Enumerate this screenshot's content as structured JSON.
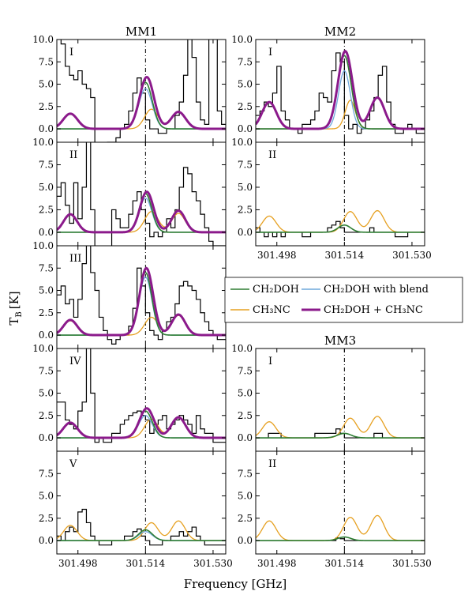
{
  "figure": {
    "xlabel": "Frequency [GHz]",
    "ylabel": "T",
    "ylabel_sub": "B",
    "ylabel_unit": "[K]"
  },
  "legend": {
    "entries": [
      {
        "label": "CH₂DOH",
        "color": "#2e7d32"
      },
      {
        "label": "CH₂DOH with blend",
        "color": "#6fa8dc"
      },
      {
        "label": "CH₃NC",
        "color": "#e6a020"
      },
      {
        "label": "CH₂DOH + CH₃NC",
        "color": "#8b1a8b"
      }
    ]
  },
  "colors": {
    "observed": "#000000",
    "ch2doh": "#2e7d32",
    "blend": "#6fa8dc",
    "ch3nc": "#e6a020",
    "sum": "#8b1a8b"
  },
  "chart_data": [
    {
      "type": "line",
      "group": "MM1",
      "title": "MM1",
      "panel": "I",
      "xlim": [
        301.493,
        301.533
      ],
      "ylim": [
        -1.5,
        10.0
      ],
      "xticks": [
        301.498,
        301.514,
        301.53
      ],
      "yticks": [
        "0.0",
        "2.5",
        "5.0",
        "7.5",
        "10.0"
      ],
      "observed": {
        "x0": 301.493,
        "step": 0.001,
        "y": [
          10.5,
          9.5,
          7.0,
          6.0,
          5.5,
          6.5,
          5.0,
          4.5,
          3.5,
          -2.0,
          -2.0,
          -2.0,
          -1.5,
          -1.5,
          -1.0,
          0.0,
          0.5,
          2.0,
          4.0,
          5.7,
          4.0,
          1.0,
          0.0,
          0.0,
          -0.5,
          -0.5,
          0.0,
          0.0,
          1.5,
          3.0,
          6.0,
          11.0,
          8.0,
          3.0,
          1.0,
          0.5,
          10.5,
          10.5,
          2.0,
          0.5
        ]
      },
      "ch2doh": {
        "amp": 5.2,
        "center": 301.514,
        "width": 0.0016
      },
      "blend": {
        "amp": 4.5,
        "center": 301.514,
        "width": 0.0016
      },
      "ch3nc": {
        "peaks": [
          {
            "amp": 1.7,
            "center": 301.4962
          },
          {
            "amp": 2.2,
            "center": 301.5154
          },
          {
            "amp": 1.9,
            "center": 301.5218
          }
        ],
        "width": 0.0016
      },
      "sum": {
        "peaks": [
          {
            "amp": 1.7,
            "center": 301.4962
          },
          {
            "amp": 5.8,
            "center": 301.5143
          },
          {
            "amp": 1.9,
            "center": 301.5218
          }
        ],
        "width": 0.0017
      },
      "vline": 301.514
    },
    {
      "type": "line",
      "group": "MM1",
      "title": "",
      "panel": "II",
      "xlim": [
        301.493,
        301.533
      ],
      "ylim": [
        -1.5,
        10.0
      ],
      "xticks": [
        301.498,
        301.514,
        301.53
      ],
      "yticks": [
        "0.0",
        "2.5",
        "5.0",
        "7.5",
        "10.0"
      ],
      "observed": {
        "x0": 301.493,
        "step": 0.001,
        "y": [
          4.0,
          5.5,
          3.0,
          1.0,
          5.5,
          1.5,
          5.0,
          11.0,
          2.5,
          -2.0,
          -2.0,
          -2.0,
          -2.0,
          2.5,
          1.5,
          0.5,
          0.5,
          2.0,
          3.5,
          4.5,
          2.5,
          1.0,
          -0.5,
          0.0,
          -0.5,
          0.0,
          1.5,
          0.5,
          2.5,
          5.0,
          7.2,
          6.5,
          4.5,
          3.5,
          2.0,
          0.5,
          -1.0,
          -1.5,
          -1.5,
          -1.5
        ]
      },
      "ch2doh": {
        "amp": 4.3,
        "center": 301.514,
        "width": 0.0015
      },
      "blend": {
        "amp": 3.8,
        "center": 301.514,
        "width": 0.0015
      },
      "ch3nc": {
        "peaks": [
          {
            "amp": 2.0,
            "center": 301.4962
          },
          {
            "amp": 2.3,
            "center": 301.5154
          },
          {
            "amp": 2.1,
            "center": 301.5218
          }
        ],
        "width": 0.0016
      },
      "sum": {
        "peaks": [
          {
            "amp": 2.0,
            "center": 301.4962
          },
          {
            "amp": 4.5,
            "center": 301.5143
          },
          {
            "amp": 2.4,
            "center": 301.5218
          }
        ],
        "width": 0.0016
      },
      "vline": 301.514
    },
    {
      "type": "line",
      "group": "MM1",
      "title": "",
      "panel": "III",
      "xlim": [
        301.493,
        301.533
      ],
      "ylim": [
        -1.5,
        10.0
      ],
      "xticks": [
        301.498,
        301.514,
        301.53
      ],
      "yticks": [
        "0.0",
        "2.5",
        "5.0",
        "7.5",
        "10.0"
      ],
      "observed": {
        "x0": 301.493,
        "step": 0.001,
        "y": [
          4.5,
          5.5,
          3.5,
          4.0,
          2.0,
          4.0,
          8.0,
          11.0,
          7.0,
          5.0,
          2.0,
          0.5,
          -0.5,
          -1.0,
          -0.5,
          0.0,
          0.0,
          1.0,
          3.0,
          7.5,
          5.5,
          2.5,
          0.5,
          0.0,
          -0.5,
          0.5,
          1.5,
          2.0,
          3.5,
          5.5,
          6.0,
          5.5,
          5.0,
          4.0,
          2.5,
          1.5,
          0.5,
          0.0,
          -0.5,
          -0.5
        ]
      },
      "ch2doh": {
        "amp": 7.0,
        "center": 301.514,
        "width": 0.0015
      },
      "blend": {
        "amp": 6.5,
        "center": 301.514,
        "width": 0.0015
      },
      "ch3nc": {
        "peaks": [
          {
            "amp": 1.6,
            "center": 301.4962
          },
          {
            "amp": 2.0,
            "center": 301.5154
          },
          {
            "amp": 2.2,
            "center": 301.5218
          }
        ],
        "width": 0.0016
      },
      "sum": {
        "peaks": [
          {
            "amp": 1.7,
            "center": 301.4962
          },
          {
            "amp": 7.5,
            "center": 301.5142
          },
          {
            "amp": 2.3,
            "center": 301.5218
          }
        ],
        "width": 0.0016
      },
      "vline": 301.514
    },
    {
      "type": "line",
      "group": "MM1",
      "title": "",
      "panel": "IV",
      "xlim": [
        301.493,
        301.533
      ],
      "ylim": [
        -1.5,
        10.0
      ],
      "xticks": [
        301.498,
        301.514,
        301.53
      ],
      "yticks": [
        "0.0",
        "2.5",
        "5.0",
        "7.5",
        "10.0"
      ],
      "observed": {
        "x0": 301.493,
        "step": 0.001,
        "y": [
          4.0,
          4.0,
          2.0,
          1.5,
          1.0,
          3.0,
          4.0,
          10.5,
          5.0,
          -0.5,
          0.0,
          -0.5,
          -0.5,
          0.5,
          0.5,
          1.5,
          2.0,
          2.5,
          2.8,
          3.0,
          2.5,
          2.0,
          0.5,
          1.5,
          2.0,
          2.5,
          1.0,
          1.5,
          2.0,
          2.5,
          2.0,
          1.5,
          0.5,
          2.5,
          1.0,
          0.5,
          0.5,
          -0.5,
          -0.5,
          -0.5
        ]
      },
      "ch2doh": {
        "amp": 3.0,
        "center": 301.514,
        "width": 0.0016
      },
      "blend": {
        "amp": 2.5,
        "center": 301.514,
        "width": 0.0016
      },
      "ch3nc": {
        "peaks": [
          {
            "amp": 1.7,
            "center": 301.4962
          },
          {
            "amp": 2.1,
            "center": 301.5154
          },
          {
            "amp": 2.3,
            "center": 301.5218
          }
        ],
        "width": 0.0016
      },
      "sum": {
        "peaks": [
          {
            "amp": 1.7,
            "center": 301.4962
          },
          {
            "amp": 3.3,
            "center": 301.5143
          },
          {
            "amp": 2.3,
            "center": 301.5218
          }
        ],
        "width": 0.0017
      },
      "vline": 301.514
    },
    {
      "type": "line",
      "group": "MM1",
      "title": "",
      "panel": "V",
      "xlim": [
        301.493,
        301.533
      ],
      "ylim": [
        -1.5,
        10.0
      ],
      "xticks": [
        301.498,
        301.514,
        301.53
      ],
      "xticklabels": [
        "301.498",
        "301.514",
        "301.530"
      ],
      "yticks": [
        "0.0",
        "2.5",
        "5.0",
        "7.5"
      ],
      "observed": {
        "x0": 301.493,
        "step": 0.001,
        "y": [
          0.5,
          0.0,
          1.0,
          1.5,
          1.0,
          3.2,
          3.5,
          2.0,
          0.5,
          0.0,
          -0.5,
          -0.5,
          -0.5,
          0.0,
          0.0,
          0.0,
          0.5,
          0.5,
          1.0,
          1.3,
          0.5,
          0.0,
          -0.5,
          -0.5,
          -0.5,
          0.0,
          0.0,
          0.5,
          0.5,
          1.0,
          0.5,
          1.0,
          1.5,
          0.5,
          0.0,
          -0.5,
          -0.5,
          -0.5,
          -0.5,
          -0.5
        ]
      },
      "ch2doh": {
        "amp": 1.2,
        "center": 301.514,
        "width": 0.0016
      },
      "blend": {
        "amp": 1.0,
        "center": 301.514,
        "width": 0.0016
      },
      "ch3nc": {
        "peaks": [
          {
            "amp": 1.7,
            "center": 301.4962
          },
          {
            "amp": 2.0,
            "center": 301.5154
          },
          {
            "amp": 2.2,
            "center": 301.5218
          }
        ],
        "width": 0.0016
      },
      "vline": 301.514
    },
    {
      "type": "line",
      "group": "MM2",
      "title": "MM2",
      "panel": "I",
      "xlim": [
        301.493,
        301.533
      ],
      "ylim": [
        -1.5,
        10.0
      ],
      "xticks": [
        301.498,
        301.514,
        301.53
      ],
      "yticks": [
        "0.0",
        "2.5",
        "5.0",
        "7.5",
        "10.0"
      ],
      "observed": {
        "x0": 301.493,
        "step": 0.001,
        "y": [
          1.5,
          2.0,
          3.0,
          2.5,
          4.0,
          7.0,
          2.0,
          1.0,
          0.0,
          0.0,
          -0.5,
          0.5,
          0.5,
          1.0,
          2.0,
          4.0,
          3.5,
          3.0,
          6.5,
          8.5,
          7.5,
          1.5,
          0.0,
          0.5,
          -0.5,
          0.0,
          1.0,
          2.0,
          3.5,
          6.0,
          7.0,
          3.0,
          0.5,
          -0.5,
          -0.5,
          0.0,
          0.5,
          0.0,
          -0.5,
          -0.5
        ]
      },
      "ch2doh": {
        "amp": 8.2,
        "center": 301.514,
        "width": 0.0016
      },
      "blend": {
        "amp": 6.5,
        "center": 301.514,
        "width": 0.0014
      },
      "ch3nc": {
        "peaks": [
          {
            "amp": 3.2,
            "center": 301.5154
          }
        ],
        "width": 0.0012
      },
      "sum": {
        "peaks": [
          {
            "amp": 3.0,
            "center": 301.4962
          },
          {
            "amp": 8.7,
            "center": 301.5142
          },
          {
            "amp": 3.5,
            "center": 301.5218
          }
        ],
        "width": 0.0017
      },
      "vline": 301.514
    },
    {
      "type": "line",
      "group": "MM2",
      "title": "",
      "panel": "II",
      "xlim": [
        301.493,
        301.533
      ],
      "ylim": [
        -1.5,
        10.0
      ],
      "xticks": [
        301.498,
        301.514,
        301.53
      ],
      "xticklabels": [
        "301.498",
        "301.514",
        "301.530"
      ],
      "yticks": [
        "0.0",
        "2.5",
        "5.0",
        "7.5",
        "10.0"
      ],
      "observed": {
        "x0": 301.493,
        "step": 0.001,
        "y": [
          0.5,
          0.0,
          -0.5,
          0.0,
          -0.5,
          0.0,
          -0.5,
          0.0,
          0.0,
          0.0,
          0.0,
          -0.5,
          -0.5,
          0.0,
          0.0,
          0.0,
          0.0,
          0.5,
          0.8,
          1.2,
          0.5,
          0.0,
          0.0,
          0.0,
          0.0,
          0.0,
          0.0,
          0.5,
          0.0,
          0.0,
          0.0,
          0.0,
          0.0,
          -0.5,
          -0.5,
          -0.5,
          0.0,
          0.0,
          0.0,
          0.0
        ]
      },
      "ch2doh": {
        "amp": 0.8,
        "center": 301.514,
        "width": 0.0015
      },
      "ch3nc": {
        "peaks": [
          {
            "amp": 1.8,
            "center": 301.4962
          },
          {
            "amp": 2.3,
            "center": 301.5154
          },
          {
            "amp": 2.4,
            "center": 301.5218
          }
        ],
        "width": 0.0016
      },
      "vline": 301.514
    },
    {
      "type": "line",
      "group": "MM3",
      "title": "MM3",
      "panel": "I",
      "xlim": [
        301.493,
        301.533
      ],
      "ylim": [
        -1.5,
        10.0
      ],
      "xticks": [
        301.498,
        301.514,
        301.53
      ],
      "yticks": [
        "0.0",
        "2.5",
        "5.0",
        "7.5",
        "10.0"
      ],
      "observed": {
        "x0": 301.493,
        "step": 0.001,
        "y": [
          0.0,
          0.0,
          0.0,
          0.5,
          0.5,
          0.5,
          0.0,
          0.0,
          0.0,
          0.0,
          0.0,
          0.0,
          0.0,
          0.0,
          0.5,
          0.5,
          0.5,
          0.5,
          0.5,
          1.0,
          0.5,
          0.0,
          0.0,
          0.0,
          0.0,
          0.0,
          0.0,
          0.0,
          0.5,
          0.5,
          0.0,
          0.0,
          0.0,
          0.0,
          0.0,
          0.0,
          0.0,
          0.0,
          0.0,
          0.0
        ]
      },
      "ch2doh": {
        "amp": 0.5,
        "center": 301.514,
        "width": 0.0016
      },
      "ch3nc": {
        "peaks": [
          {
            "amp": 1.8,
            "center": 301.4962
          },
          {
            "amp": 2.2,
            "center": 301.5154
          },
          {
            "amp": 2.4,
            "center": 301.5218
          }
        ],
        "width": 0.0016
      },
      "vline": 301.514
    },
    {
      "type": "line",
      "group": "MM3",
      "title": "",
      "panel": "II",
      "xlim": [
        301.493,
        301.533
      ],
      "ylim": [
        -1.5,
        10.0
      ],
      "xticks": [
        301.498,
        301.514,
        301.53
      ],
      "xticklabels": [
        "301.498",
        "301.514",
        "301.530"
      ],
      "yticks": [
        "0.0",
        "2.5",
        "5.0",
        "7.5"
      ],
      "observed": {
        "x0": 301.493,
        "step": 0.001,
        "y": [
          0.0,
          0.0,
          0.0,
          0.0,
          0.0,
          0.0,
          0.0,
          0.0,
          0.0,
          0.0,
          0.0,
          0.0,
          0.0,
          0.0,
          0.0,
          0.0,
          0.0,
          0.0,
          0.0,
          0.3,
          0.2,
          0.0,
          0.0,
          0.0,
          0.0,
          0.0,
          0.0,
          0.0,
          0.0,
          0.0,
          0.0,
          0.0,
          0.0,
          0.0,
          0.0,
          0.0,
          0.0,
          0.0,
          0.0,
          0.0
        ]
      },
      "ch2doh": {
        "amp": 0.4,
        "center": 301.514,
        "width": 0.0015
      },
      "ch3nc": {
        "peaks": [
          {
            "amp": 2.2,
            "center": 301.4962
          },
          {
            "amp": 2.6,
            "center": 301.5154
          },
          {
            "amp": 2.8,
            "center": 301.5218
          }
        ],
        "width": 0.0016
      },
      "vline": 301.514
    }
  ]
}
